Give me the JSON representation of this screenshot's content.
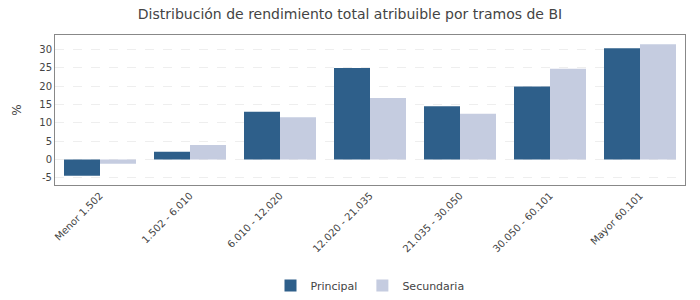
{
  "chart_data": {
    "type": "bar",
    "title": "Distribución de rendimiento total atribuible por tramos de BI",
    "categories": [
      "Menor 1.502",
      "1.502 - 6.010",
      "6.010 - 12.020",
      "12.020 - 21.035",
      "21.035 - 30.050",
      "30.050 - 60.101",
      "Mayor 60.101"
    ],
    "series": [
      {
        "name": "Principal",
        "color": "#2E5F8A",
        "values": [
          -4.5,
          2.1,
          13.0,
          25.0,
          14.5,
          19.9,
          30.4
        ]
      },
      {
        "name": "Secundaria",
        "color": "#C5CCE0",
        "values": [
          -1.2,
          3.9,
          11.5,
          16.8,
          12.5,
          24.8,
          31.5
        ]
      }
    ],
    "ylabel": "%",
    "ylim": [
      -7,
      34
    ],
    "yticks": [
      -5,
      0,
      5,
      10,
      15,
      20,
      25,
      30
    ],
    "grid": true,
    "legend": "bottom"
  }
}
